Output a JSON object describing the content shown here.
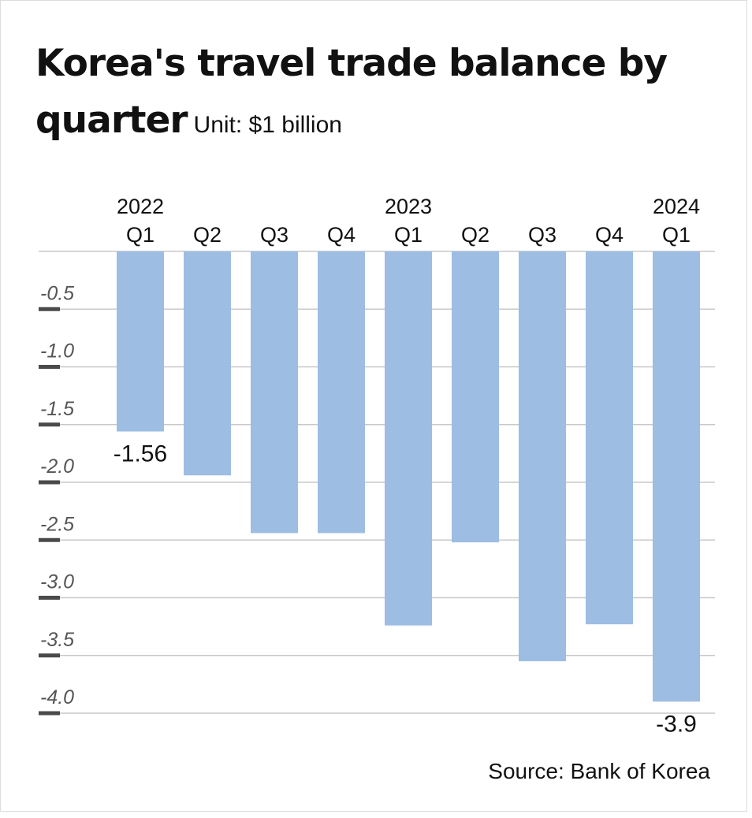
{
  "header": {
    "title": "Korea's travel trade balance by quarter",
    "unit": "Unit: $1 billion"
  },
  "footer": {
    "source": "Source: Bank of Korea"
  },
  "colors": {
    "bar": "#9dbde3",
    "grid": "#c8c8c8",
    "tick": "#4a4a4a",
    "text": "#111111",
    "axis_text": "#555555"
  },
  "chart_data": {
    "type": "bar",
    "categories": [
      "2022 Q1",
      "Q2",
      "Q3",
      "Q4",
      "2023 Q1",
      "Q2",
      "Q3",
      "Q4",
      "2024 Q1"
    ],
    "category_labels": [
      {
        "year": "2022",
        "quarter": "Q1"
      },
      {
        "year": "",
        "quarter": "Q2"
      },
      {
        "year": "",
        "quarter": "Q3"
      },
      {
        "year": "",
        "quarter": "Q4"
      },
      {
        "year": "2023",
        "quarter": "Q1"
      },
      {
        "year": "",
        "quarter": "Q2"
      },
      {
        "year": "",
        "quarter": "Q3"
      },
      {
        "year": "",
        "quarter": "Q4"
      },
      {
        "year": "2024",
        "quarter": "Q1"
      }
    ],
    "values": [
      -1.56,
      -1.94,
      -2.44,
      -2.44,
      -3.24,
      -2.52,
      -3.55,
      -3.23,
      -3.9
    ],
    "data_labels": [
      {
        "index": 0,
        "text": "-1.56"
      },
      {
        "index": 8,
        "text": "-3.9"
      }
    ],
    "y_ticks": [
      -0.5,
      -1.0,
      -1.5,
      -2.0,
      -2.5,
      -3.0,
      -3.5,
      -4.0
    ],
    "y_tick_labels": [
      "-0.5",
      "-1.0",
      "-1.5",
      "-2.0",
      "-2.5",
      "-3.0",
      "-3.5",
      "-4.0"
    ],
    "ylim": [
      -4.0,
      0
    ],
    "grid": true,
    "legend": "none"
  }
}
